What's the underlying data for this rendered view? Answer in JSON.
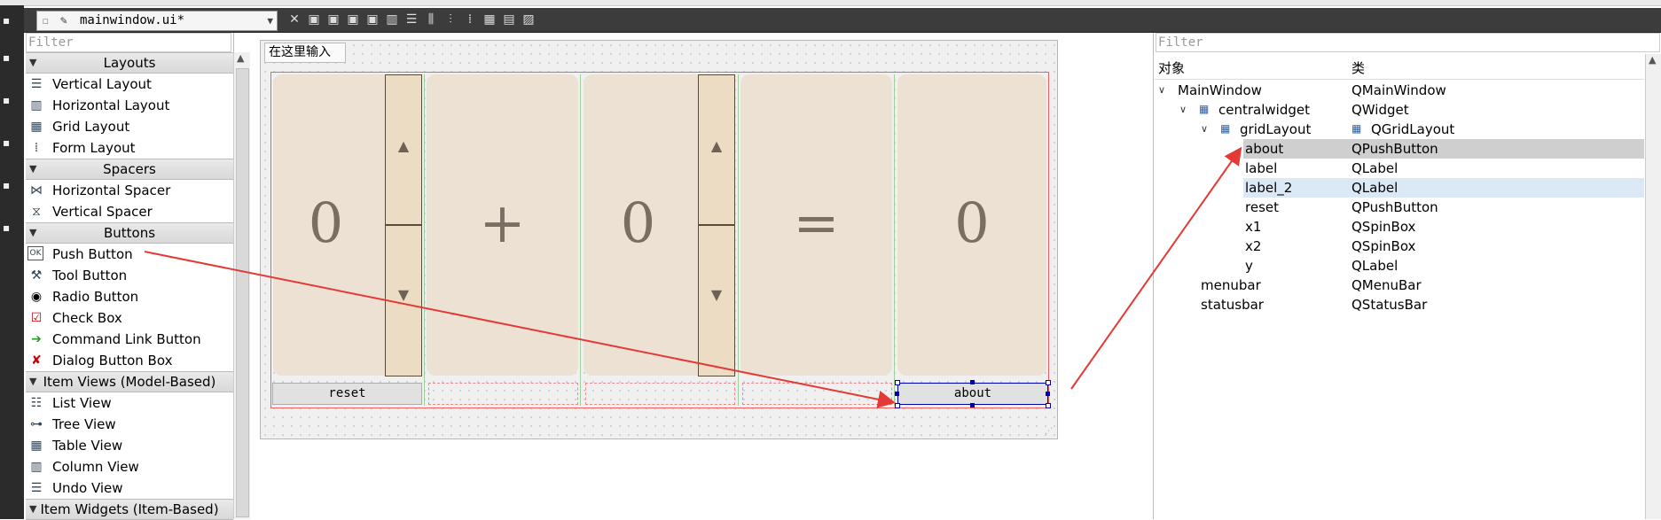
{
  "editor_tab": {
    "file_name": "mainwindow.ui*"
  },
  "widget_box": {
    "filter_placeholder": "Filter",
    "categories": [
      {
        "label": "Layouts",
        "items": [
          {
            "label": "Vertical Layout",
            "icon": "vertical-layout-icon"
          },
          {
            "label": "Horizontal Layout",
            "icon": "horizontal-layout-icon"
          },
          {
            "label": "Grid Layout",
            "icon": "grid-layout-icon"
          },
          {
            "label": "Form Layout",
            "icon": "form-layout-icon"
          }
        ]
      },
      {
        "label": "Spacers",
        "items": [
          {
            "label": "Horizontal Spacer",
            "icon": "horizontal-spacer-icon"
          },
          {
            "label": "Vertical Spacer",
            "icon": "vertical-spacer-icon"
          }
        ]
      },
      {
        "label": "Buttons",
        "items": [
          {
            "label": "Push Button",
            "icon": "push-button-icon"
          },
          {
            "label": "Tool Button",
            "icon": "tool-button-icon"
          },
          {
            "label": "Radio Button",
            "icon": "radio-button-icon"
          },
          {
            "label": "Check Box",
            "icon": "check-box-icon"
          },
          {
            "label": "Command Link Button",
            "icon": "command-link-icon"
          },
          {
            "label": "Dialog Button Box",
            "icon": "dialog-button-box-icon"
          }
        ]
      },
      {
        "label": "Item Views (Model-Based)",
        "items": [
          {
            "label": "List View",
            "icon": "list-view-icon"
          },
          {
            "label": "Tree View",
            "icon": "tree-view-icon"
          },
          {
            "label": "Table View",
            "icon": "table-view-icon"
          },
          {
            "label": "Column View",
            "icon": "column-view-icon"
          },
          {
            "label": "Undo View",
            "icon": "undo-view-icon"
          }
        ]
      },
      {
        "label": "Item Widgets (Item-Based)",
        "items": []
      }
    ]
  },
  "form": {
    "line_edit_placeholder": "在这里输入",
    "x1_value": "0",
    "plus_label": "+",
    "x2_value": "0",
    "equals_label": "=",
    "y_value": "0",
    "reset_label": "reset",
    "about_label": "about"
  },
  "object_inspector": {
    "filter_placeholder": "Filter",
    "col_object": "对象",
    "col_class": "类",
    "rows": [
      {
        "object": "MainWindow",
        "class": "QMainWindow"
      },
      {
        "object": "centralwidget",
        "class": "QWidget"
      },
      {
        "object": "gridLayout",
        "class": "QGridLayout"
      },
      {
        "object": "about",
        "class": "QPushButton"
      },
      {
        "object": "label",
        "class": "QLabel"
      },
      {
        "object": "label_2",
        "class": "QLabel"
      },
      {
        "object": "reset",
        "class": "QPushButton"
      },
      {
        "object": "x1",
        "class": "QSpinBox"
      },
      {
        "object": "x2",
        "class": "QSpinBox"
      },
      {
        "object": "y",
        "class": "QLabel"
      },
      {
        "object": "menubar",
        "class": "QMenuBar"
      },
      {
        "object": "statusbar",
        "class": "QStatusBar"
      }
    ]
  },
  "colors": {
    "label_bg": "#ede1d3",
    "spin_bg": "#eddcc4",
    "selected_row": "#cfcfcf",
    "hover_row": "#dbe9f7",
    "annotation_arrow": "#e53935"
  }
}
